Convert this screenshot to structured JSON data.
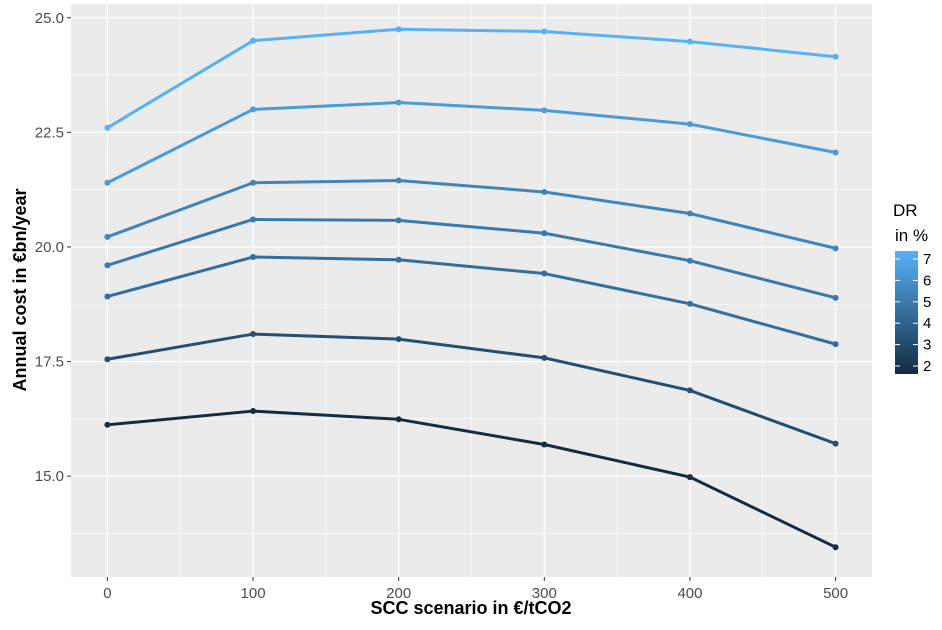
{
  "chart_data": {
    "type": "line",
    "xlabel": "SCC scenario in €/tCO2",
    "ylabel": "Annual cost in €bn/year",
    "x": [
      0,
      100,
      200,
      300,
      400,
      500
    ],
    "x_ticks": [
      "0",
      "100",
      "200",
      "300",
      "400",
      "500"
    ],
    "y_ticks": [
      "15.0",
      "17.5",
      "20.0",
      "22.5",
      "25.0"
    ],
    "xlim": [
      -25,
      525
    ],
    "ylim": [
      12.8,
      25.3
    ],
    "grid": true,
    "legend": {
      "title_line1": "DR",
      "title_line2": "in %",
      "placement": "right",
      "labels": [
        "7",
        "6",
        "5",
        "4",
        "3",
        "2"
      ],
      "range": [
        2,
        7
      ],
      "color_low": "#132b43",
      "color_high": "#56b1f7"
    },
    "series": [
      {
        "dr": 7,
        "color": "#56b1f7",
        "values": [
          22.6,
          24.5,
          24.75,
          24.7,
          24.48,
          24.15
        ]
      },
      {
        "dr": 6,
        "color": "#4b9bd9",
        "values": [
          21.4,
          23.0,
          23.15,
          22.98,
          22.68,
          22.06
        ]
      },
      {
        "dr": 5,
        "color": "#3f84bb",
        "values": [
          20.22,
          21.4,
          21.45,
          21.2,
          20.73,
          19.97
        ]
      },
      {
        "dr": 4.5,
        "color": "#3a79ad",
        "values": [
          19.6,
          20.6,
          20.58,
          20.3,
          19.7,
          18.89
        ]
      },
      {
        "dr": 4,
        "color": "#346e9e",
        "values": [
          18.92,
          19.78,
          19.72,
          19.42,
          18.76,
          17.88
        ]
      },
      {
        "dr": 3,
        "color": "#244f72",
        "values": [
          17.55,
          18.1,
          17.99,
          17.58,
          16.87,
          15.71
        ]
      },
      {
        "dr": 2,
        "color": "#132b43",
        "values": [
          16.12,
          16.42,
          16.24,
          15.69,
          14.98,
          13.45
        ]
      }
    ]
  }
}
